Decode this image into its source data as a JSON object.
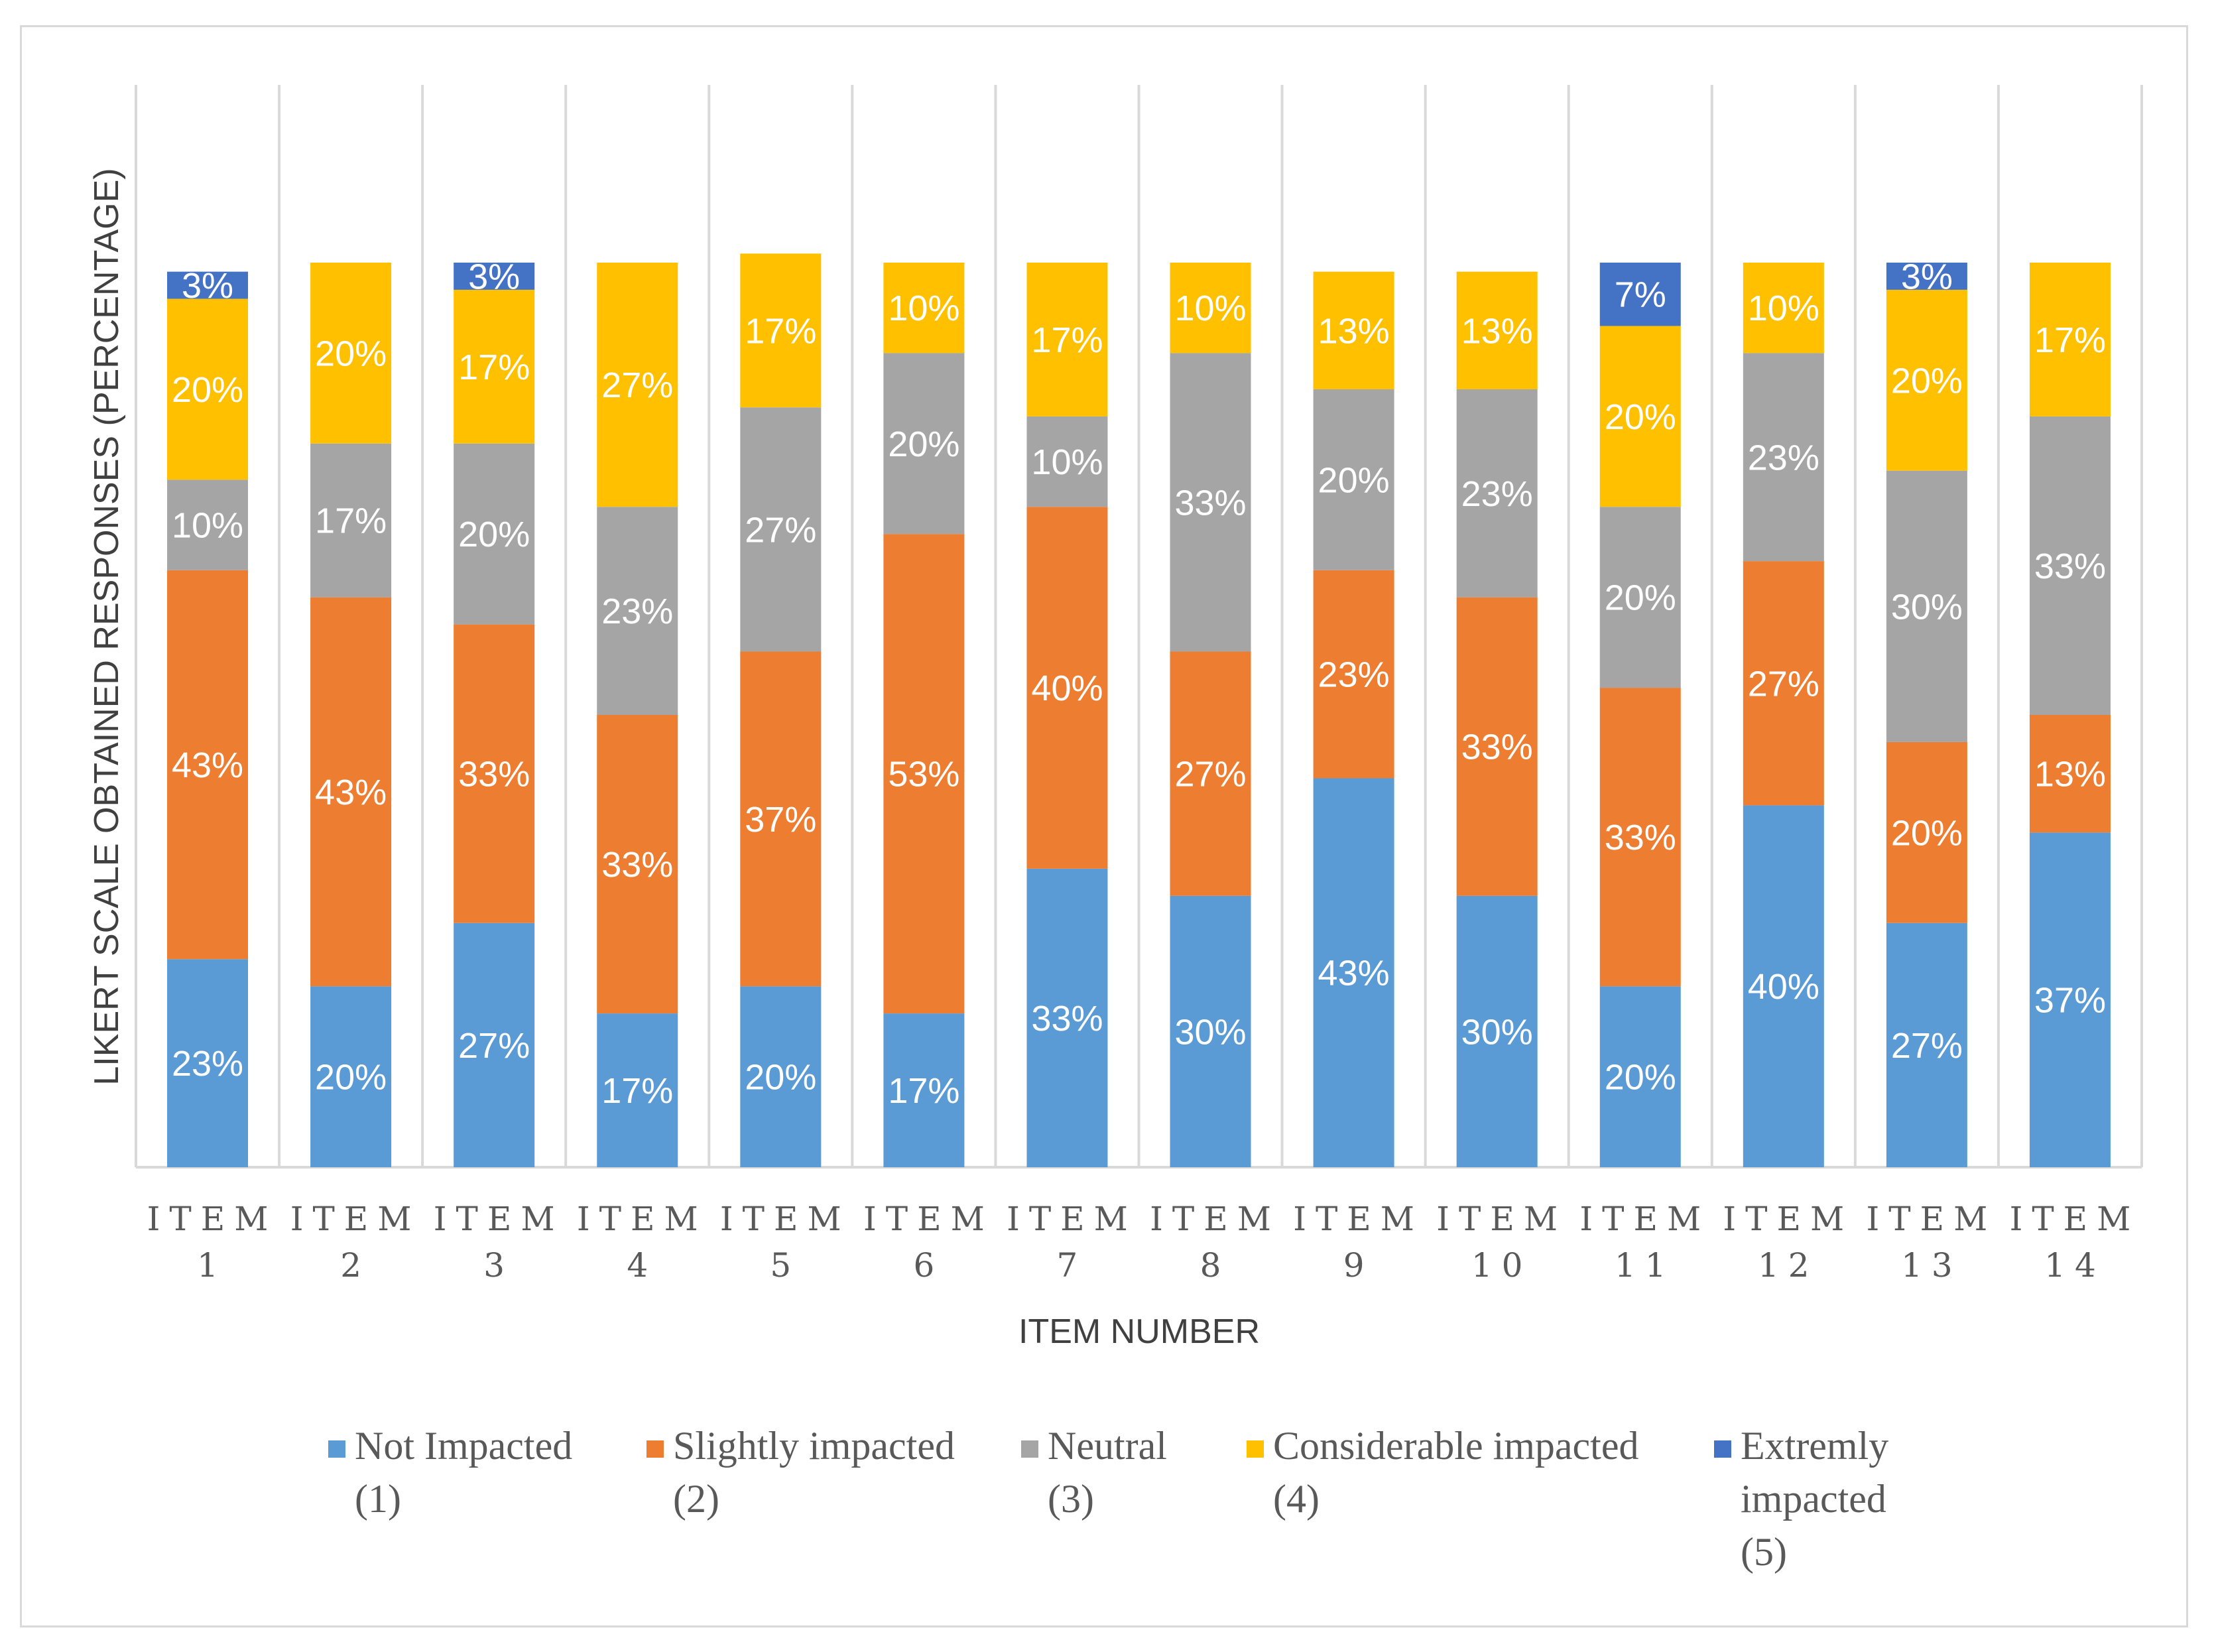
{
  "chart_data": {
    "type": "stacked-bar",
    "title": "",
    "xlabel": "ITEM NUMBER",
    "ylabel": "LIKERT SCALE OBTAINED RESPONSES (PERCENTAGE)",
    "ylim": [
      0,
      100
    ],
    "grid": "vertical category separators",
    "legend_position": "bottom",
    "categories": [
      [
        "ITEM",
        "1"
      ],
      [
        "ITEM",
        "2"
      ],
      [
        "ITEM",
        "3"
      ],
      [
        "ITEM",
        "4"
      ],
      [
        "ITEM",
        "5"
      ],
      [
        "ITEM",
        "6"
      ],
      [
        "ITEM",
        "7"
      ],
      [
        "ITEM",
        "8"
      ],
      [
        "ITEM",
        "9"
      ],
      [
        "ITEM",
        "10"
      ],
      [
        "ITEM",
        "11"
      ],
      [
        "ITEM",
        "12"
      ],
      [
        "ITEM",
        "13"
      ],
      [
        "ITEM",
        "14"
      ]
    ],
    "series": [
      {
        "name": [
          "Not Impacted",
          "(1)"
        ],
        "color": "#5b9bd5",
        "values": [
          23,
          20,
          27,
          17,
          20,
          17,
          33,
          30,
          43,
          30,
          20,
          40,
          27,
          37
        ],
        "labels": [
          "23%",
          "20%",
          "27%",
          "17%",
          "20%",
          "17%",
          "33%",
          "30%",
          "43%",
          "30%",
          "20%",
          "40%",
          "27%",
          "37%"
        ]
      },
      {
        "name": [
          "Slightly impacted",
          "(2)"
        ],
        "color": "#ed7d31",
        "values": [
          43,
          43,
          33,
          33,
          37,
          53,
          40,
          27,
          23,
          33,
          33,
          27,
          20,
          13
        ],
        "labels": [
          "43%",
          "43%",
          "33%",
          "33%",
          "37%",
          "53%",
          "40%",
          "27%",
          "23%",
          "33%",
          "33%",
          "27%",
          "20%",
          "13%"
        ]
      },
      {
        "name": [
          "Neutral",
          "(3)"
        ],
        "color": "#a5a5a5",
        "values": [
          10,
          17,
          20,
          23,
          27,
          20,
          10,
          33,
          20,
          23,
          20,
          23,
          30,
          33
        ],
        "labels": [
          "10%",
          "17%",
          "20%",
          "23%",
          "27%",
          "20%",
          "10%",
          "33%",
          "20%",
          "23%",
          "20%",
          "23%",
          "30%",
          "33%"
        ]
      },
      {
        "name": [
          "Considerable impacted",
          "(4)"
        ],
        "color": "#ffc000",
        "values": [
          20,
          20,
          17,
          27,
          17,
          10,
          17,
          10,
          13,
          13,
          20,
          10,
          20,
          17
        ],
        "labels": [
          "20%",
          "20%",
          "17%",
          "27%",
          "17%",
          "10%",
          "17%",
          "10%",
          "13%",
          "13%",
          "20%",
          "10%",
          "20%",
          "17%"
        ]
      },
      {
        "name": [
          "Extremly",
          "impacted",
          "(5)"
        ],
        "color": "#4472c4",
        "values": [
          3,
          0,
          3,
          0,
          0,
          0,
          0,
          0,
          0,
          0,
          7,
          0,
          3,
          0
        ],
        "labels": [
          "3%",
          "",
          "3%",
          "",
          "",
          "",
          "",
          "",
          "",
          "",
          "7%",
          "",
          "3%",
          ""
        ]
      }
    ]
  }
}
